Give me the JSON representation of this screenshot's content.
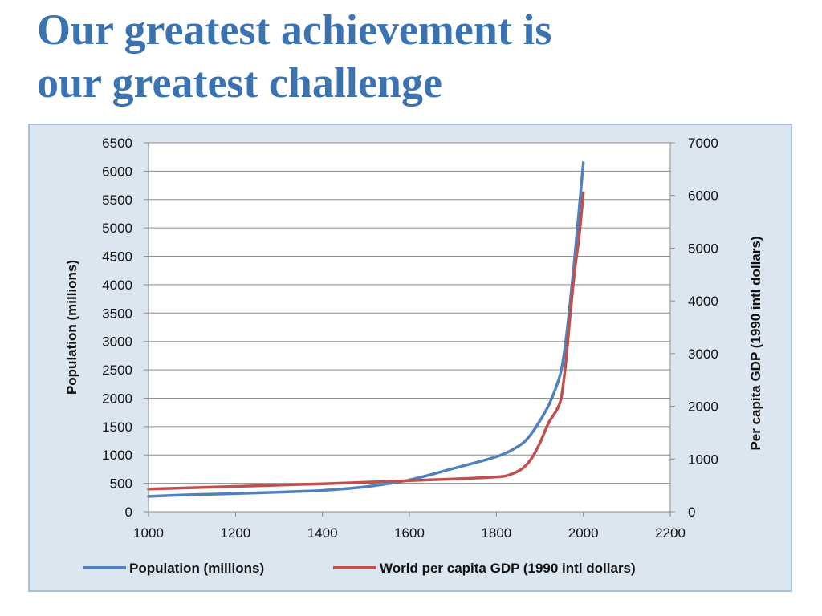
{
  "slide": {
    "title_line1": "Our greatest achievement is",
    "title_line2": "our greatest challenge"
  },
  "colors": {
    "title": "#3b73b0",
    "population": "#4f81bd",
    "gdp": "#c0504d",
    "background": "#dce6f1",
    "gridline": "#8c8c8c"
  },
  "chart_data": {
    "type": "line",
    "title": "",
    "xlabel": "",
    "ylabel": "Population (millions)",
    "y2label": "Per capita GDP (1990 intl dollars)",
    "xlim": [
      1000,
      2200
    ],
    "ylim": [
      0,
      6500
    ],
    "y2lim": [
      0,
      7000
    ],
    "xticks": [
      1000,
      1200,
      1400,
      1600,
      1800,
      2000,
      2200
    ],
    "yticks": [
      0,
      500,
      1000,
      1500,
      2000,
      2500,
      3000,
      3500,
      4000,
      4500,
      5000,
      5500,
      6000,
      6500
    ],
    "y2ticks": [
      0,
      1000,
      2000,
      3000,
      4000,
      5000,
      6000,
      7000
    ],
    "grid": true,
    "legend_position": "bottom",
    "series": [
      {
        "name": "Population (millions)",
        "axis": "left",
        "points": [
          [
            1000,
            270
          ],
          [
            1100,
            300
          ],
          [
            1200,
            320
          ],
          [
            1300,
            345
          ],
          [
            1400,
            375
          ],
          [
            1500,
            440
          ],
          [
            1600,
            560
          ],
          [
            1700,
            760
          ],
          [
            1800,
            970
          ],
          [
            1850,
            1150
          ],
          [
            1875,
            1320
          ],
          [
            1900,
            1600
          ],
          [
            1920,
            1870
          ],
          [
            1940,
            2250
          ],
          [
            1950,
            2520
          ],
          [
            1960,
            3020
          ],
          [
            1970,
            3700
          ],
          [
            1980,
            4450
          ],
          [
            1990,
            5300
          ],
          [
            2000,
            6150
          ]
        ]
      },
      {
        "name": "World per capita GDP (1990 intl dollars)",
        "axis": "right",
        "points": [
          [
            1000,
            430
          ],
          [
            1200,
            480
          ],
          [
            1400,
            530
          ],
          [
            1500,
            560
          ],
          [
            1600,
            590
          ],
          [
            1700,
            620
          ],
          [
            1800,
            660
          ],
          [
            1830,
            700
          ],
          [
            1860,
            820
          ],
          [
            1880,
            1000
          ],
          [
            1900,
            1300
          ],
          [
            1920,
            1680
          ],
          [
            1940,
            1950
          ],
          [
            1950,
            2200
          ],
          [
            1960,
            2850
          ],
          [
            1970,
            3750
          ],
          [
            1980,
            4550
          ],
          [
            1990,
            5200
          ],
          [
            2000,
            6050
          ]
        ]
      }
    ]
  }
}
